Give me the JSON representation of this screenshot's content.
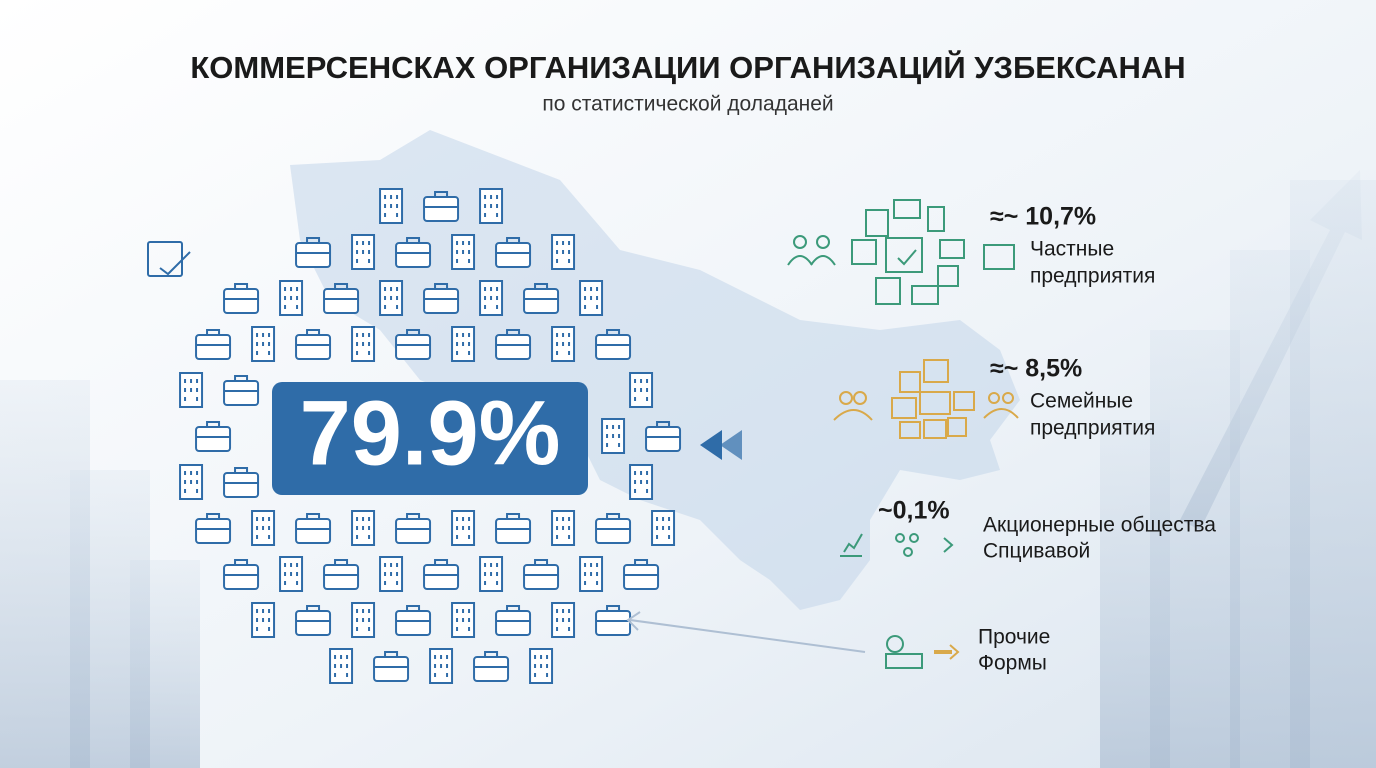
{
  "header": {
    "title": "КОММЕРСЕНСКАХ ОРГАНИЗАЦИИ ОРГАНИЗАЦИЙ УЗБЕКСАНАН",
    "subtitle": "по статистической доладаней"
  },
  "main": {
    "value": "79.9%"
  },
  "items": [
    {
      "value": "≈~ 10,7%",
      "lines": [
        "Частные",
        "предприятия"
      ]
    },
    {
      "value": "≈~ 8,5%",
      "lines": [
        "Семейные",
        "предприятия"
      ]
    },
    {
      "value": "~0,1%",
      "lines": [
        "Акционерные общества",
        "Спцивавой"
      ]
    },
    {
      "lines": [
        "Прочие",
        "Формы"
      ]
    }
  ]
}
